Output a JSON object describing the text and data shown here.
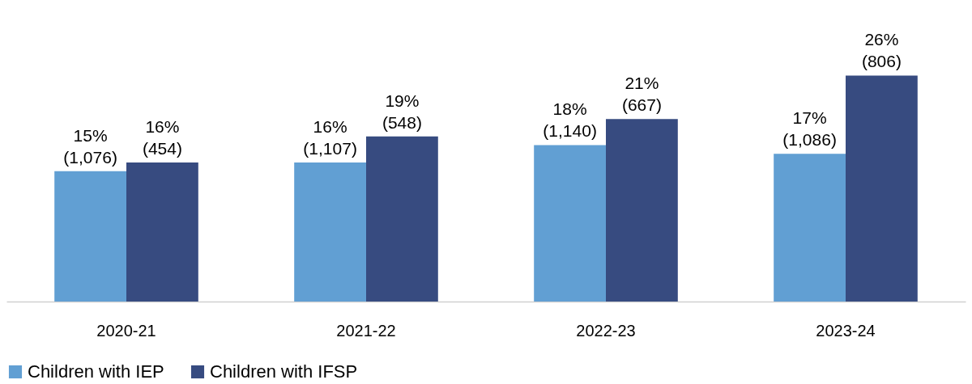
{
  "chart_data": {
    "type": "bar",
    "categories": [
      "2020-21",
      "2021-22",
      "2022-23",
      "2023-24"
    ],
    "series": [
      {
        "name": "Children with IEP",
        "color": "#619fd3",
        "values": [
          15,
          16,
          18,
          17
        ],
        "value_labels": [
          "15%\n(1,076)",
          "16%\n(1,107)",
          "18%\n(1,140)",
          "17%\n(1,086)"
        ]
      },
      {
        "name": "Children with IFSP",
        "color": "#374b80",
        "values": [
          16,
          19,
          21,
          26
        ],
        "value_labels": [
          "16%\n(454)",
          "19%\n(548)",
          "21%\n(667)",
          "26%\n(806)"
        ]
      }
    ],
    "legend": "bottom",
    "grid": false
  }
}
